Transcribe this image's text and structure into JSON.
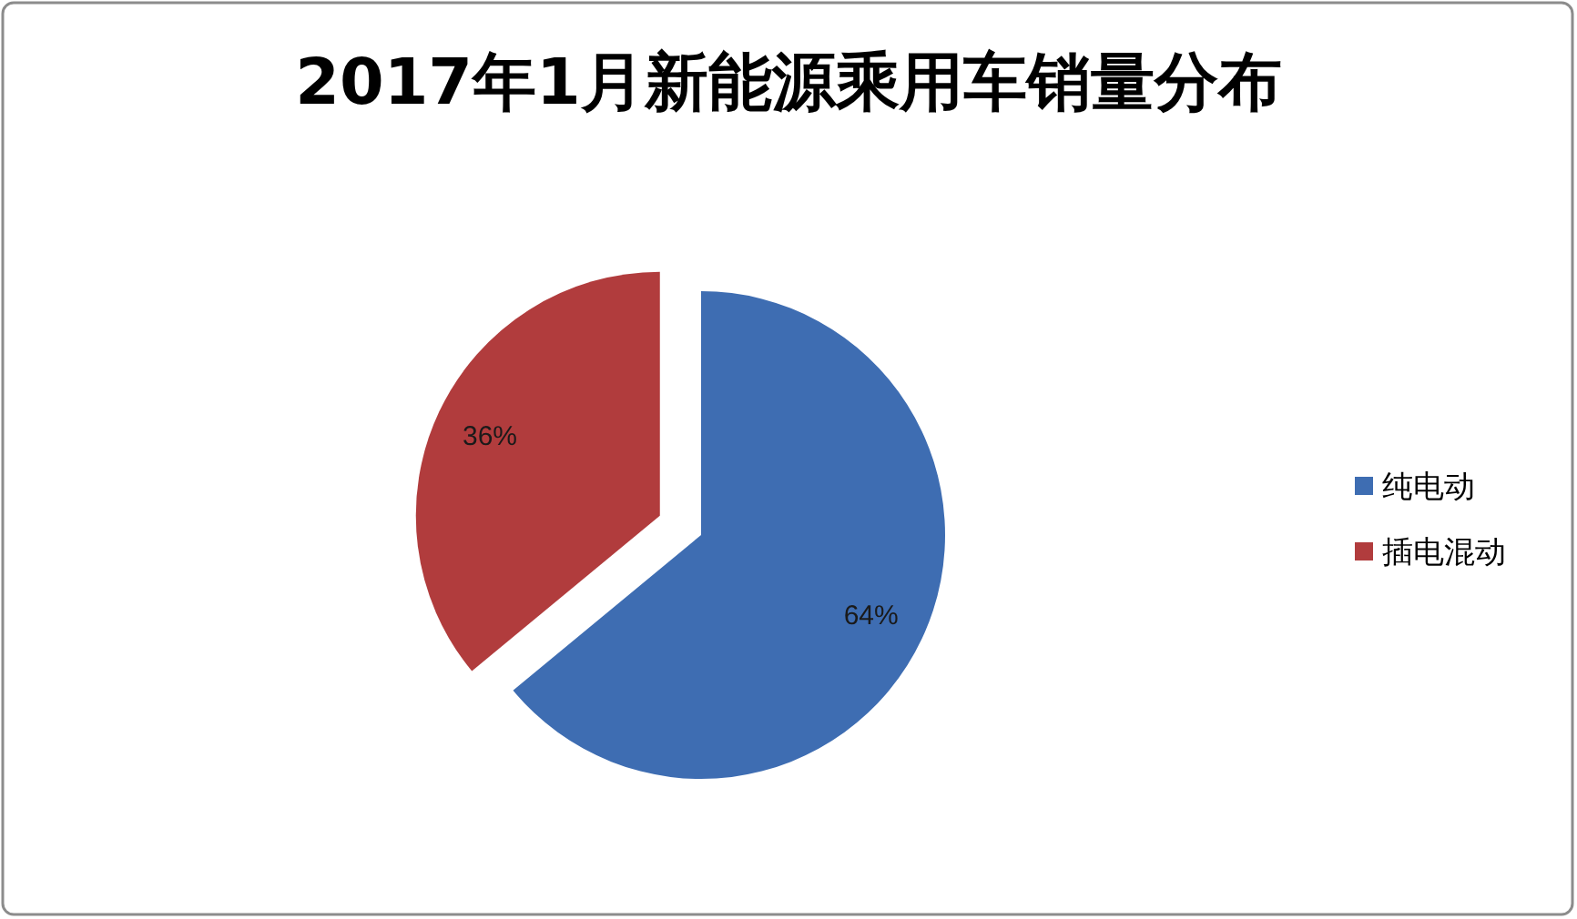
{
  "chart_data": {
    "type": "pie",
    "title": "2017年1月新能源乘用车销量分布",
    "categories": [
      "纯电动",
      "插电混动"
    ],
    "values": [
      64,
      36
    ],
    "value_labels": [
      "64%",
      "36%"
    ],
    "colors": [
      "#3e6db2",
      "#b13c3d"
    ],
    "legend": "right"
  }
}
